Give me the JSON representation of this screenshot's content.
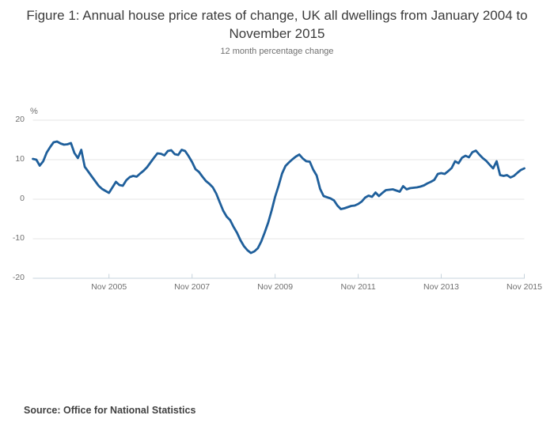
{
  "title": "Figure 1: Annual house price rates of change, UK all dwellings from January 2004 to November 2015",
  "subtitle": "12 month percentage change",
  "source": "Source: Office for National Statistics",
  "colors": {
    "line": "#1f5f9b",
    "gridline": "#e6e6e6",
    "axis": "#c7d3dc",
    "text": "#6f6f6f",
    "title_text": "#3b3b3b"
  },
  "chart_data": {
    "type": "line",
    "title": "Figure 1: Annual house price rates of change, UK all dwellings from January 2004 to November 2015",
    "subtitle": "12 month percentage change",
    "ylabel": "%",
    "xlabel": "",
    "ylim": [
      -20,
      20
    ],
    "y_ticks": [
      20,
      10,
      0,
      -10,
      -20
    ],
    "grid": "horizontal",
    "legend": "none",
    "x_frequency": "monthly",
    "x_start": "Jan 2004",
    "x_end": "Nov 2015",
    "x_tick_labels": [
      "Nov 2005",
      "Nov 2007",
      "Nov 2009",
      "Nov 2011",
      "Nov 2013",
      "Nov 2015"
    ],
    "x_tick_month_indices": [
      22,
      46,
      70,
      94,
      118,
      142
    ],
    "series": [
      {
        "name": "12 month percentage change",
        "color": "#1f5f9b",
        "values": [
          10.2,
          10.0,
          8.5,
          9.6,
          11.8,
          13.2,
          14.4,
          14.6,
          14.1,
          13.8,
          13.9,
          14.2,
          11.7,
          10.4,
          12.5,
          8.2,
          7.0,
          5.8,
          4.6,
          3.4,
          2.6,
          2.1,
          1.6,
          3.0,
          4.4,
          3.6,
          3.4,
          4.8,
          5.6,
          5.9,
          5.7,
          6.5,
          7.2,
          8.1,
          9.3,
          10.5,
          11.6,
          11.5,
          11.1,
          12.2,
          12.4,
          11.4,
          11.2,
          12.5,
          12.2,
          10.9,
          9.4,
          7.6,
          6.9,
          5.7,
          4.6,
          3.9,
          3.0,
          1.4,
          -0.8,
          -2.9,
          -4.4,
          -5.3,
          -7.0,
          -8.5,
          -10.4,
          -11.9,
          -12.9,
          -13.6,
          -13.2,
          -12.4,
          -10.7,
          -8.4,
          -5.9,
          -2.8,
          0.6,
          3.4,
          6.5,
          8.4,
          9.3,
          10.1,
          10.8,
          11.3,
          10.3,
          9.6,
          9.5,
          7.5,
          6.0,
          2.6,
          0.8,
          0.5,
          0.2,
          -0.3,
          -1.6,
          -2.5,
          -2.3,
          -2.0,
          -1.7,
          -1.6,
          -1.2,
          -0.6,
          0.4,
          0.9,
          0.6,
          1.7,
          0.8,
          1.6,
          2.3,
          2.4,
          2.5,
          2.2,
          1.9,
          3.3,
          2.5,
          2.8,
          2.9,
          3.0,
          3.2,
          3.5,
          4.0,
          4.4,
          4.9,
          6.4,
          6.6,
          6.4,
          7.1,
          7.9,
          9.6,
          9.1,
          10.5,
          11.0,
          10.6,
          11.9,
          12.3,
          11.3,
          10.4,
          9.7,
          8.7,
          7.8,
          9.6,
          6.1,
          5.9,
          6.1,
          5.5,
          5.9,
          6.7,
          7.4,
          7.8
        ]
      }
    ]
  }
}
